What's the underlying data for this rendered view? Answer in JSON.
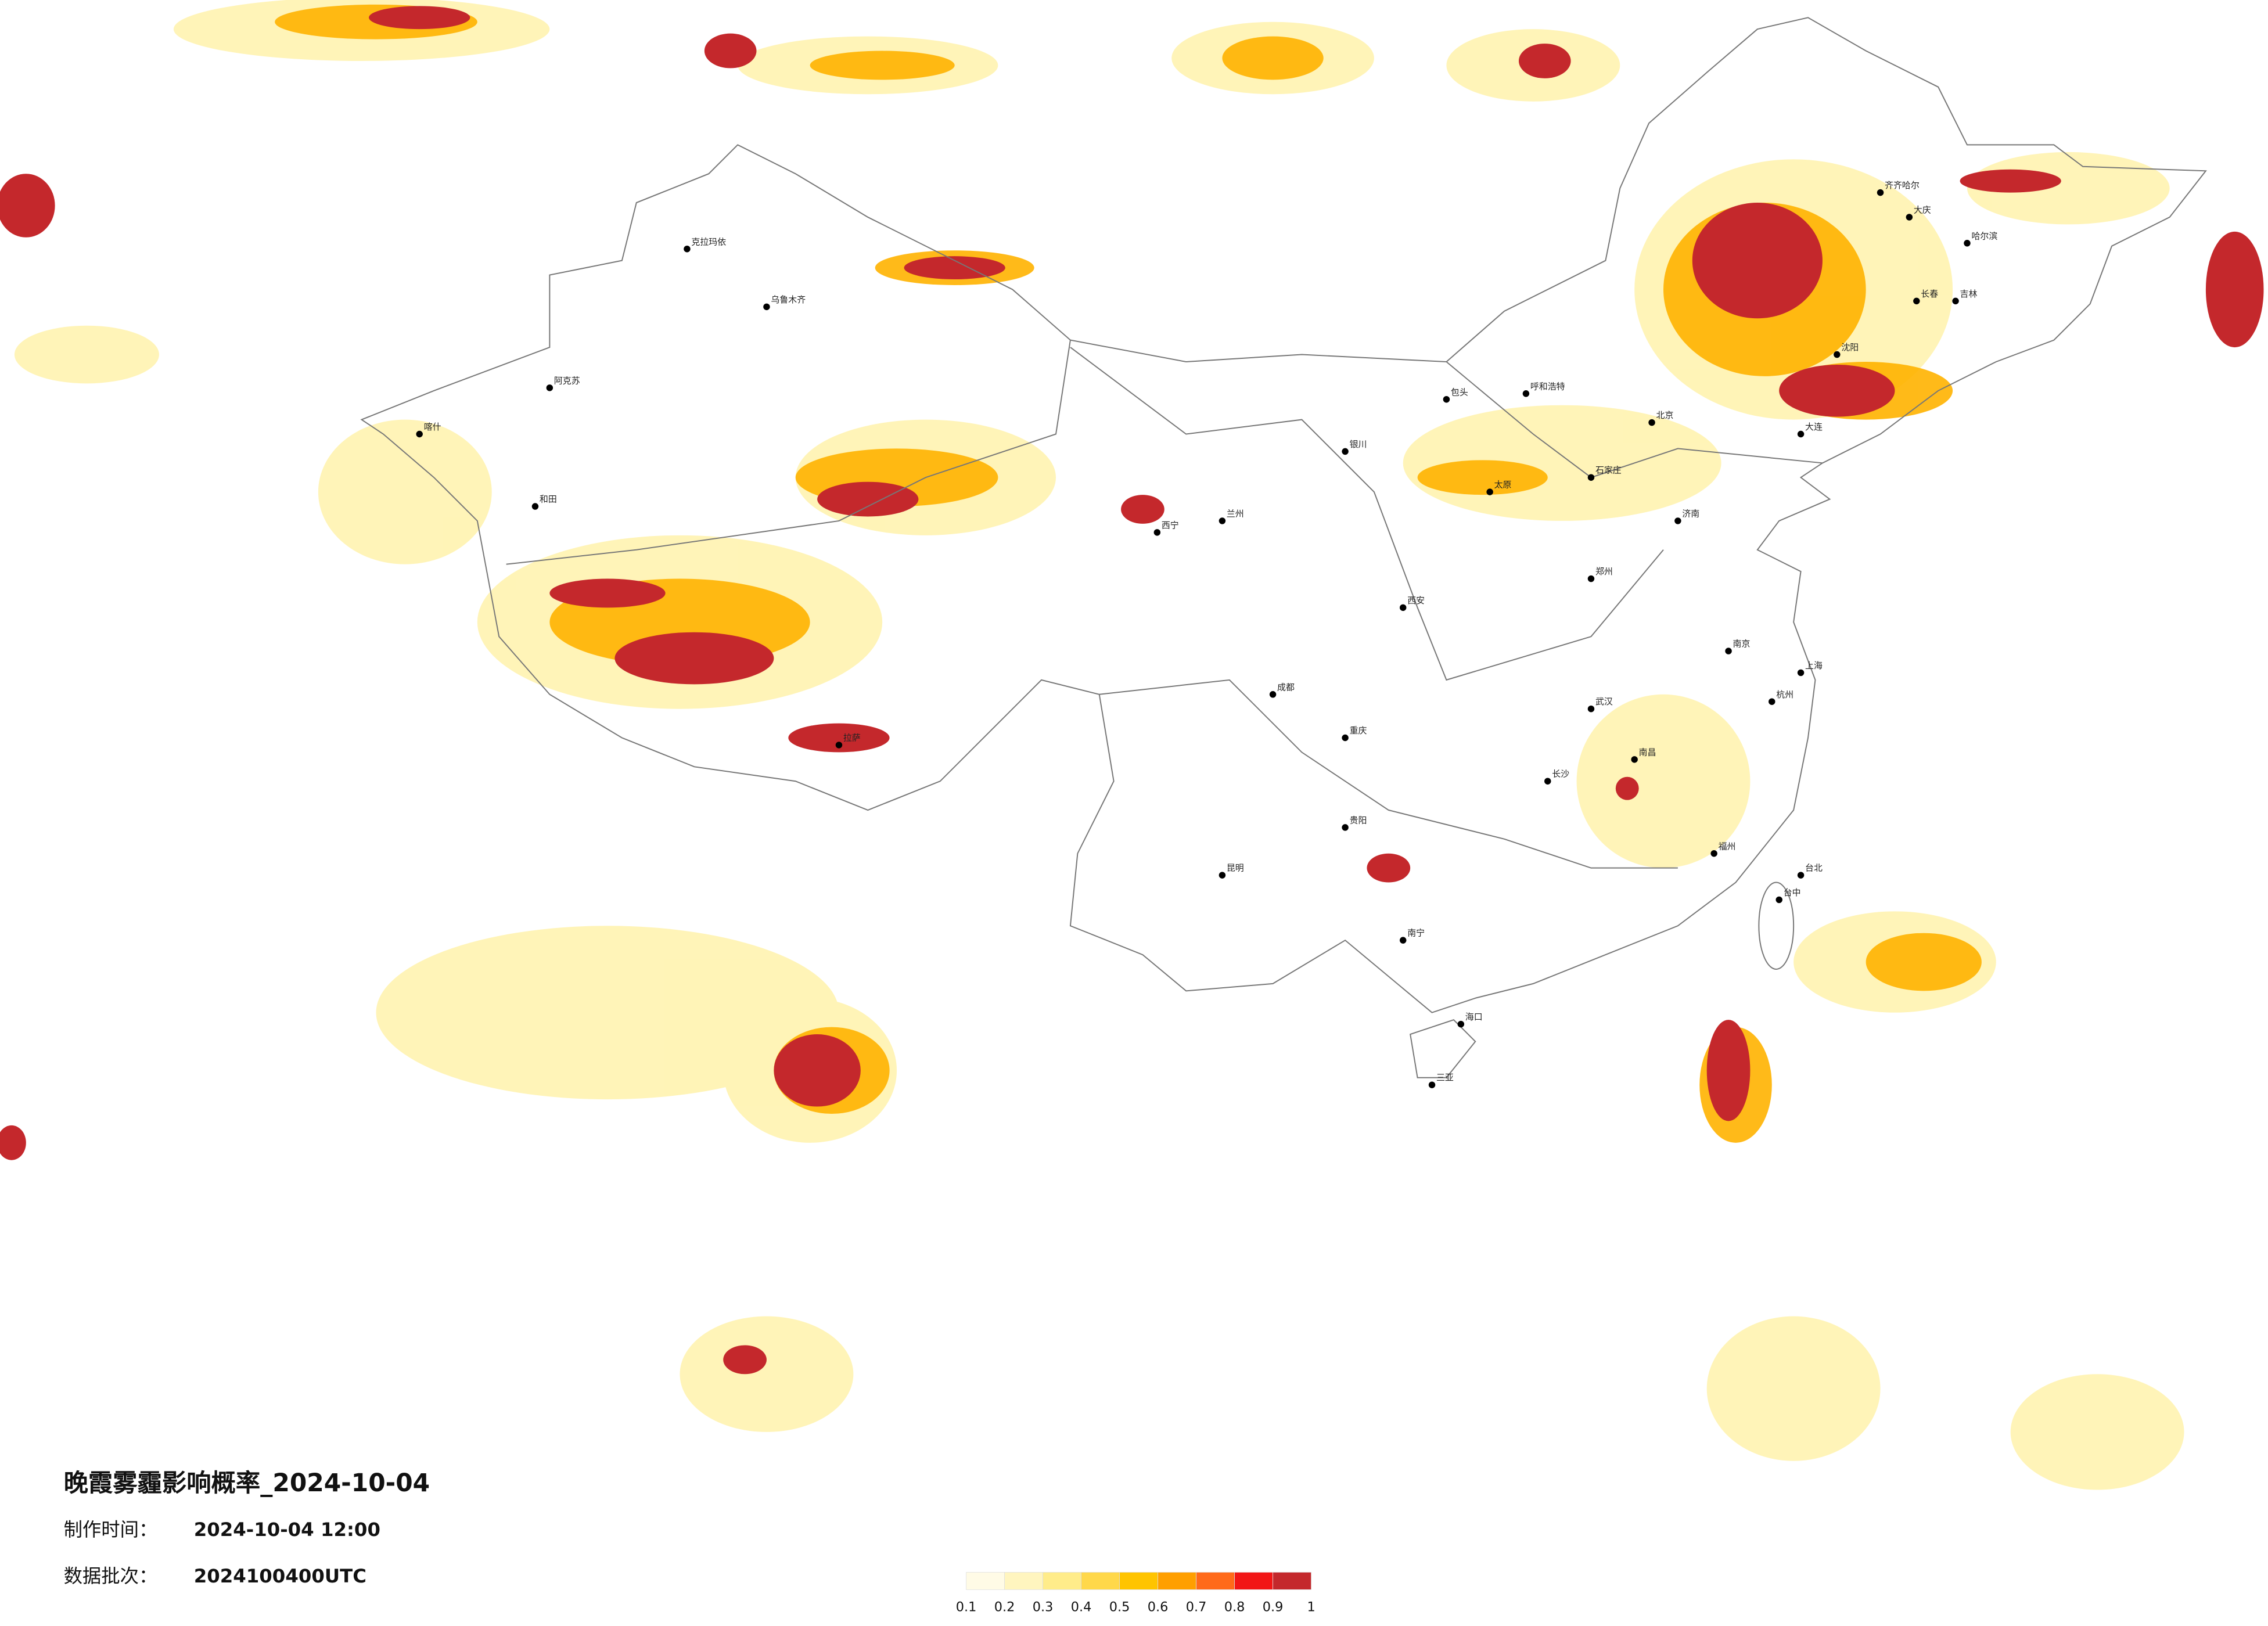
{
  "header": {
    "title": "晚霞雾霾影响概率_2024-10-04",
    "make_time_label": "制作时间：",
    "make_time": "2024-10-04 12:00",
    "batch_label": "数据批次：",
    "batch": "2024100400UTC"
  },
  "legend": {
    "colors": [
      "#fffbe6",
      "#fff5bf",
      "#ffec8a",
      "#ffd84a",
      "#ffc400",
      "#ff9f00",
      "#ff6a1a",
      "#f21616",
      "#c4282c"
    ],
    "labels": [
      "0.1",
      "0.2",
      "0.3",
      "0.4",
      "0.5",
      "0.6",
      "0.7",
      "0.8",
      "0.9",
      "1"
    ]
  },
  "cities": [
    "哈尔滨",
    "长春",
    "吉林",
    "齐齐哈尔",
    "大庆",
    "呼和浩特",
    "包头",
    "银川",
    "兰州",
    "西宁",
    "乌鲁木齐",
    "克拉玛依",
    "阿克苏",
    "和田",
    "喀什",
    "拉萨",
    "重庆",
    "成都",
    "昆明",
    "贵阳",
    "南宁",
    "海口",
    "三亚",
    "福州",
    "台北",
    "台中",
    "上海",
    "南京",
    "武汉",
    "长沙",
    "郑州",
    "济南",
    "石家庄",
    "太原",
    "西安",
    "南昌",
    "杭州",
    "北京",
    "沈阳",
    "大连"
  ]
}
